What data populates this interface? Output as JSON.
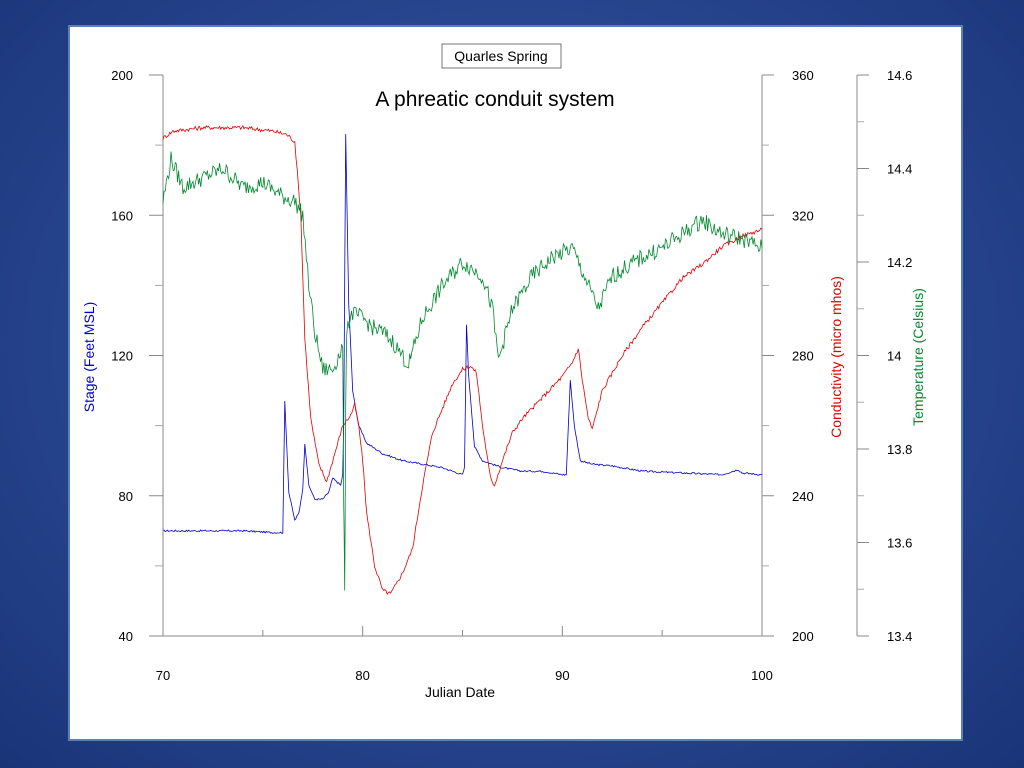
{
  "slide": {
    "title": "A phreatic conduit system"
  },
  "chart_data": {
    "type": "line",
    "title": "Quarles Spring",
    "xlabel": "Julian Date",
    "xlim": [
      70,
      100
    ],
    "x_ticks": [
      70,
      80,
      90,
      100
    ],
    "grid": false,
    "axes": [
      {
        "id": "stage",
        "label": "Stage (Feet MSL)",
        "color": "#0000cc",
        "side": "left",
        "ylim": [
          40,
          200
        ],
        "ticks": [
          40,
          80,
          120,
          160,
          200
        ]
      },
      {
        "id": "cond",
        "label": "Conductivity (micro mhos)",
        "color": "#e00000",
        "side": "right",
        "ylim": [
          200,
          360
        ],
        "ticks": [
          200,
          240,
          280,
          320,
          360
        ]
      },
      {
        "id": "temp",
        "label": "Temperature (Celsius)",
        "color": "#008a2e",
        "side": "right",
        "ylim": [
          13.4,
          14.6
        ],
        "ticks": [
          "13.4",
          "13.6",
          "13.8",
          "14",
          "14.2",
          "14.4",
          "14.6"
        ]
      }
    ],
    "series": [
      {
        "name": "Stage",
        "axis": "stage",
        "color": "#0000cc",
        "points": [
          [
            70,
            70
          ],
          [
            72,
            70
          ],
          [
            74,
            70
          ],
          [
            75.5,
            69.5
          ],
          [
            76.0,
            69.5
          ],
          [
            76.1,
            107
          ],
          [
            76.3,
            81
          ],
          [
            76.6,
            73
          ],
          [
            76.8,
            75
          ],
          [
            77.0,
            82
          ],
          [
            77.1,
            95
          ],
          [
            77.3,
            83
          ],
          [
            77.6,
            79
          ],
          [
            78.0,
            79
          ],
          [
            78.3,
            81
          ],
          [
            78.5,
            85
          ],
          [
            78.7,
            84
          ],
          [
            78.9,
            83
          ],
          [
            79.0,
            86
          ],
          [
            79.05,
            100
          ],
          [
            79.15,
            183
          ],
          [
            79.3,
            135
          ],
          [
            79.5,
            110
          ],
          [
            79.8,
            100
          ],
          [
            80.2,
            95
          ],
          [
            81,
            92
          ],
          [
            82,
            90
          ],
          [
            83,
            89
          ],
          [
            84,
            88
          ],
          [
            85.0,
            86
          ],
          [
            85.1,
            88
          ],
          [
            85.2,
            129
          ],
          [
            85.3,
            115
          ],
          [
            85.6,
            94
          ],
          [
            86,
            90
          ],
          [
            87,
            88
          ],
          [
            88,
            87
          ],
          [
            89,
            87
          ],
          [
            90,
            86
          ],
          [
            90.2,
            86
          ],
          [
            90.4,
            113
          ],
          [
            90.6,
            100
          ],
          [
            90.9,
            90
          ],
          [
            91.5,
            89
          ],
          [
            92.5,
            88.5
          ],
          [
            94,
            87
          ],
          [
            96,
            86.5
          ],
          [
            98,
            86
          ],
          [
            98.8,
            87.5
          ],
          [
            99,
            86.5
          ],
          [
            100,
            86
          ]
        ]
      },
      {
        "name": "Conductivity",
        "axis": "cond",
        "color": "#e00000",
        "points": [
          [
            70,
            342
          ],
          [
            70.5,
            344
          ],
          [
            72,
            345
          ],
          [
            74,
            345
          ],
          [
            75.5,
            344
          ],
          [
            76.2,
            343
          ],
          [
            76.6,
            341
          ],
          [
            76.9,
            320
          ],
          [
            77.1,
            285
          ],
          [
            77.4,
            262
          ],
          [
            77.8,
            249
          ],
          [
            78.2,
            244
          ],
          [
            78.6,
            252
          ],
          [
            79.0,
            260
          ],
          [
            79.4,
            263
          ],
          [
            79.6,
            266
          ],
          [
            79.8,
            260
          ],
          [
            80.0,
            250
          ],
          [
            80.2,
            235
          ],
          [
            80.6,
            220
          ],
          [
            81.0,
            213
          ],
          [
            81.4,
            212
          ],
          [
            82.0,
            218
          ],
          [
            82.5,
            225
          ],
          [
            83,
            243
          ],
          [
            83.5,
            258
          ],
          [
            84,
            265
          ],
          [
            84.5,
            272
          ],
          [
            85,
            276
          ],
          [
            85.4,
            277
          ],
          [
            85.7,
            275
          ],
          [
            86.0,
            260
          ],
          [
            86.4,
            245
          ],
          [
            86.6,
            243
          ],
          [
            87,
            250
          ],
          [
            87.5,
            258
          ],
          [
            88,
            262
          ],
          [
            89,
            268
          ],
          [
            90,
            274
          ],
          [
            90.5,
            278
          ],
          [
            90.8,
            282
          ],
          [
            91.0,
            273
          ],
          [
            91.3,
            262
          ],
          [
            91.5,
            259
          ],
          [
            92,
            270
          ],
          [
            93,
            280
          ],
          [
            94,
            288
          ],
          [
            95,
            295
          ],
          [
            96,
            302
          ],
          [
            97,
            306
          ],
          [
            98,
            311
          ],
          [
            99,
            314
          ],
          [
            100,
            316
          ]
        ]
      },
      {
        "name": "Temperature",
        "axis": "temp",
        "color": "#008a2e",
        "points": [
          [
            70,
            14.33
          ],
          [
            70.4,
            14.42
          ],
          [
            71,
            14.36
          ],
          [
            72,
            14.38
          ],
          [
            73,
            14.4
          ],
          [
            74,
            14.36
          ],
          [
            75,
            14.37
          ],
          [
            76,
            14.34
          ],
          [
            76.6,
            14.33
          ],
          [
            77.0,
            14.3
          ],
          [
            77.3,
            14.15
          ],
          [
            77.6,
            14.05
          ],
          [
            78.0,
            13.97
          ],
          [
            78.5,
            13.97
          ],
          [
            79.0,
            14.02
          ],
          [
            79.05,
            13.7
          ],
          [
            79.1,
            13.48
          ],
          [
            79.15,
            13.9
          ],
          [
            79.2,
            14.06
          ],
          [
            79.5,
            14.09
          ],
          [
            80.0,
            14.08
          ],
          [
            80.5,
            14.06
          ],
          [
            81,
            14.05
          ],
          [
            81.5,
            14.03
          ],
          [
            82.3,
            13.98
          ],
          [
            83,
            14.08
          ],
          [
            84,
            14.15
          ],
          [
            85,
            14.2
          ],
          [
            86,
            14.17
          ],
          [
            86.5,
            14.1
          ],
          [
            86.8,
            13.99
          ],
          [
            87.5,
            14.1
          ],
          [
            88.5,
            14.17
          ],
          [
            89.5,
            14.21
          ],
          [
            90.5,
            14.23
          ],
          [
            91,
            14.18
          ],
          [
            91.8,
            14.1
          ],
          [
            92.5,
            14.17
          ],
          [
            94,
            14.21
          ],
          [
            95,
            14.23
          ],
          [
            96,
            14.26
          ],
          [
            97,
            14.29
          ],
          [
            98,
            14.26
          ],
          [
            99,
            14.25
          ],
          [
            100,
            14.23
          ]
        ]
      }
    ]
  }
}
